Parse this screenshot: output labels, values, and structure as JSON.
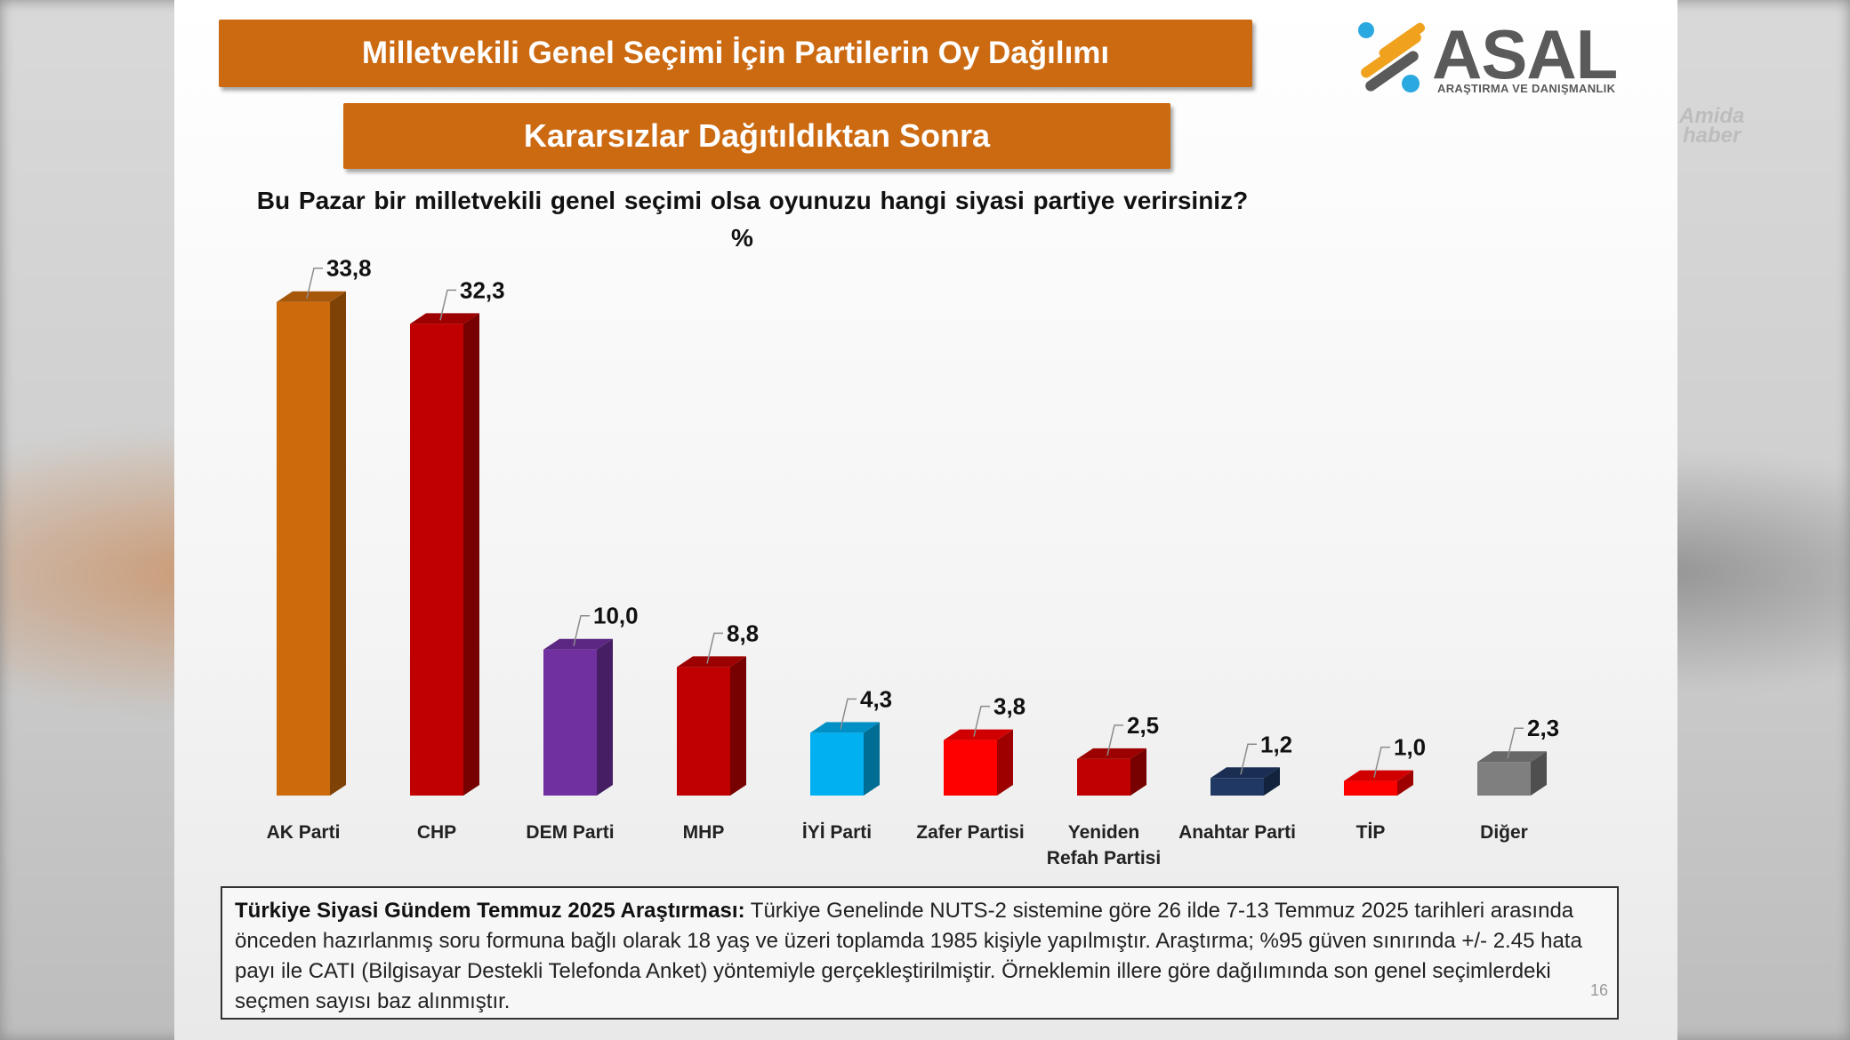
{
  "title": "Milletvekili Genel Seçimi İçin Partilerin Oy Dağılımı",
  "subtitle": "Kararsızlar Dağıtıldıktan Sonra",
  "logo": {
    "name": "ASAL",
    "tagline": "ARAŞTIRMA VE DANIŞMANLIK"
  },
  "watermark": {
    "line1": "Amida",
    "line2": "haber"
  },
  "chart_data": {
    "type": "bar",
    "title": "Bu Pazar bir milletvekili genel seçimi olsa oyunuzu hangi siyasi partiye verirsiniz?",
    "ylabel": "%",
    "xlabel": "",
    "ylim": [
      0,
      35
    ],
    "grid": false,
    "legend": "none",
    "categories": [
      "AK Parti",
      "CHP",
      "DEM Parti",
      "MHP",
      "İYİ Parti",
      "Zafer Partisi",
      "Yeniden Refah Partisi",
      "Anahtar Parti",
      "TİP",
      "Diğer"
    ],
    "category_lines": [
      [
        "AK Parti"
      ],
      [
        "CHP"
      ],
      [
        "DEM Parti"
      ],
      [
        "MHP"
      ],
      [
        "İYİ Parti"
      ],
      [
        "Zafer Partisi"
      ],
      [
        "Yeniden",
        "Refah Partisi"
      ],
      [
        "Anahtar Parti"
      ],
      [
        "TİP"
      ],
      [
        "Diğer"
      ]
    ],
    "values": [
      33.8,
      32.3,
      10.0,
      8.8,
      4.3,
      3.8,
      2.5,
      1.2,
      1.0,
      2.3
    ],
    "data_labels": [
      "33,8",
      "32,3",
      "10,0",
      "8,8",
      "4,3",
      "3,8",
      "2,5",
      "1,2",
      "1,0",
      "2,3"
    ],
    "colors": [
      "#cc6a0c",
      "#c00000",
      "#7030a0",
      "#c00000",
      "#00b0f0",
      "#ff0000",
      "#c00000",
      "#1f3864",
      "#ff0000",
      "#7f7f7f"
    ]
  },
  "note": {
    "bold": "Türkiye Siyasi Gündem Temmuz 2025 Araştırması:",
    "text": " Türkiye Genelinde NUTS-2 sistemine göre 26 ilde 7-13 Temmuz 2025 tarihleri arasında önceden hazırlanmış soru formuna bağlı olarak 18 yaş ve üzeri toplamda 1985 kişiyle yapılmıştır. Araştırma; %95 güven sınırında +/- 2.45 hata payı ile CATI (Bilgisayar Destekli Telefonda Anket) yöntemiyle gerçekleştirilmiştir. Örneklemin illere göre dağılımında son genel seçimlerdeki seçmen sayısı baz alınmıştır."
  },
  "page_number": "16"
}
